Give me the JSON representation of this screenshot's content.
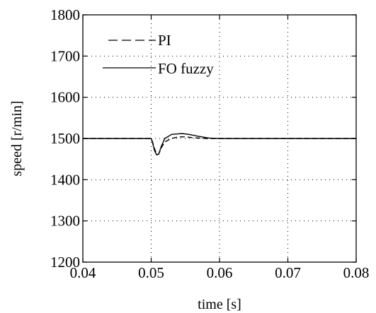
{
  "chart_data": {
    "type": "line",
    "xlabel": "time [s]",
    "ylabel": "speed [r/min]",
    "xlim": [
      0.04,
      0.08
    ],
    "ylim": [
      1200,
      1800
    ],
    "xticks": [
      0.04,
      0.05,
      0.06,
      0.07,
      0.08
    ],
    "yticks": [
      1200,
      1300,
      1400,
      1500,
      1600,
      1700,
      1800
    ],
    "xtick_labels": [
      "0.04",
      "0.05",
      "0.06",
      "0.07",
      "0.08"
    ],
    "ytick_labels": [
      "1200",
      "1300",
      "1400",
      "1500",
      "1600",
      "1700",
      "1800"
    ],
    "grid": true,
    "legend_position": "top-left",
    "series": [
      {
        "name": "PI",
        "style": "dashed",
        "color": "#000000",
        "x": [
          0.04,
          0.05,
          0.0502,
          0.0505,
          0.0508,
          0.0511,
          0.0515,
          0.052,
          0.053,
          0.054,
          0.055,
          0.056,
          0.058,
          0.06,
          0.065,
          0.07,
          0.075,
          0.08
        ],
        "y": [
          1500,
          1500,
          1492,
          1475,
          1462,
          1462,
          1478,
          1492,
          1500,
          1504,
          1504,
          1502,
          1500,
          1500,
          1500,
          1500,
          1500,
          1500
        ]
      },
      {
        "name": "FO fuzzy",
        "style": "solid",
        "color": "#000000",
        "x": [
          0.04,
          0.05,
          0.0502,
          0.0505,
          0.0508,
          0.0511,
          0.0515,
          0.052,
          0.053,
          0.0545,
          0.0555,
          0.057,
          0.0585,
          0.06,
          0.065,
          0.07,
          0.075,
          0.08
        ],
        "y": [
          1500,
          1500,
          1490,
          1470,
          1460,
          1462,
          1482,
          1500,
          1510,
          1512,
          1510,
          1505,
          1501,
          1500,
          1500,
          1500,
          1500,
          1500
        ]
      }
    ]
  }
}
